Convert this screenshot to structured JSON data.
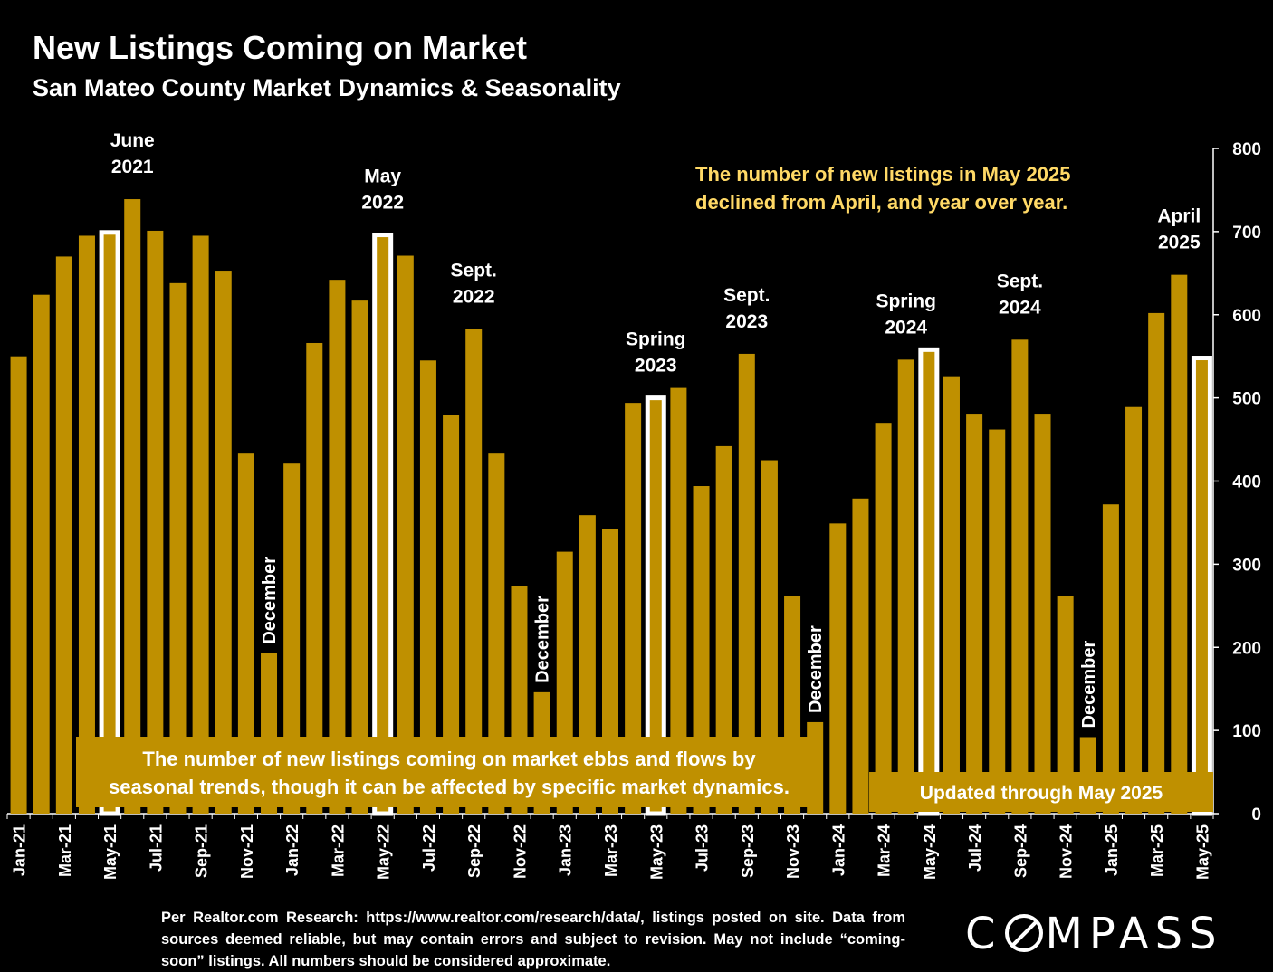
{
  "header": {
    "title": "New Listings Coming on Market",
    "subtitle": "San Mateo County Market Dynamics & Seasonality"
  },
  "colors": {
    "bar": "#BF9000",
    "highlight_border": "#FFFFFF",
    "annotation_text": "#FFD966",
    "background": "#000000"
  },
  "chart_data": {
    "type": "bar",
    "categories": [
      "Jan-21",
      "Feb-21",
      "Mar-21",
      "Apr-21",
      "May-21",
      "Jun-21",
      "Jul-21",
      "Aug-21",
      "Sep-21",
      "Oct-21",
      "Nov-21",
      "Dec-21",
      "Jan-22",
      "Feb-22",
      "Mar-22",
      "Apr-22",
      "May-22",
      "Jun-22",
      "Jul-22",
      "Aug-22",
      "Sep-22",
      "Oct-22",
      "Nov-22",
      "Dec-22",
      "Jan-23",
      "Feb-23",
      "Mar-23",
      "Apr-23",
      "May-23",
      "Jun-23",
      "Jul-23",
      "Aug-23",
      "Sep-23",
      "Oct-23",
      "Nov-23",
      "Dec-23",
      "Jan-24",
      "Feb-24",
      "Mar-24",
      "Apr-24",
      "May-24",
      "Jun-24",
      "Jul-24",
      "Aug-24",
      "Sep-24",
      "Oct-24",
      "Nov-24",
      "Dec-24",
      "Jan-25",
      "Feb-25",
      "Mar-25",
      "Apr-25",
      "May-25"
    ],
    "x_tick_labels": [
      "Jan-21",
      "Mar-21",
      "May-21",
      "Jul-21",
      "Sep-21",
      "Nov-21",
      "Jan-22",
      "Mar-22",
      "May-22",
      "Jul-22",
      "Sep-22",
      "Nov-22",
      "Jan-23",
      "Mar-23",
      "May-23",
      "Jul-23",
      "Sep-23",
      "Nov-23",
      "Jan-24",
      "Mar-24",
      "May-24",
      "Jul-24",
      "Sep-24",
      "Nov-24",
      "Jan-25",
      "Mar-25",
      "May-25"
    ],
    "values": [
      550,
      624,
      670,
      695,
      699,
      739,
      701,
      638,
      695,
      653,
      433,
      193,
      421,
      566,
      642,
      617,
      696,
      671,
      545,
      479,
      583,
      433,
      274,
      146,
      315,
      359,
      342,
      494,
      500,
      512,
      394,
      442,
      553,
      425,
      262,
      110,
      349,
      379,
      470,
      546,
      558,
      525,
      481,
      462,
      570,
      481,
      262,
      92,
      372,
      489,
      602,
      648,
      548
    ],
    "highlighted": [
      "May-21",
      "May-22",
      "May-23",
      "May-24",
      "May-25"
    ],
    "ylim": [
      0,
      800
    ],
    "y_ticks": [
      0,
      100,
      200,
      300,
      400,
      500,
      600,
      700,
      800
    ],
    "y_axis_side": "right",
    "grid": false
  },
  "annotations": {
    "peaks": [
      {
        "category": "Jun-21",
        "lines": [
          "June",
          "2021"
        ]
      },
      {
        "category": "May-22",
        "lines": [
          "May",
          "2022"
        ]
      },
      {
        "category": "Sep-22",
        "lines": [
          "Sept.",
          "2022"
        ]
      },
      {
        "category": "May-23",
        "lines": [
          "Spring",
          "2023"
        ]
      },
      {
        "category": "Sep-23",
        "lines": [
          "Sept.",
          "2023"
        ]
      },
      {
        "category": "Apr-24",
        "lines": [
          "Spring",
          "2024"
        ]
      },
      {
        "category": "Sep-24",
        "lines": [
          "Sept.",
          "2024"
        ]
      },
      {
        "category": "Apr-25",
        "lines": [
          "April",
          "2025"
        ]
      }
    ],
    "decembers": [
      {
        "category": "Dec-21",
        "text": "December"
      },
      {
        "category": "Dec-22",
        "text": "December"
      },
      {
        "category": "Dec-23",
        "text": "December"
      },
      {
        "category": "Dec-24",
        "text": "December"
      }
    ],
    "callout_top": [
      "The number of new listings in May 2025",
      "declined from April, and year over year."
    ],
    "callout_bottom": [
      "The number of new listings coming on market ebbs and flows by",
      "seasonal trends, though it can be affected by specific market dynamics."
    ],
    "callout_updated": "Updated through May 2025"
  },
  "footer": {
    "note": "Per Realtor.com Research:  https://www.realtor.com/research/data/, listings posted on site. Data from sources deemed reliable, but may contain errors and subject to revision. May not include “coming-soon” listings. All numbers should be considered approximate.",
    "logo_left": "C",
    "logo_right": "MPASS"
  }
}
